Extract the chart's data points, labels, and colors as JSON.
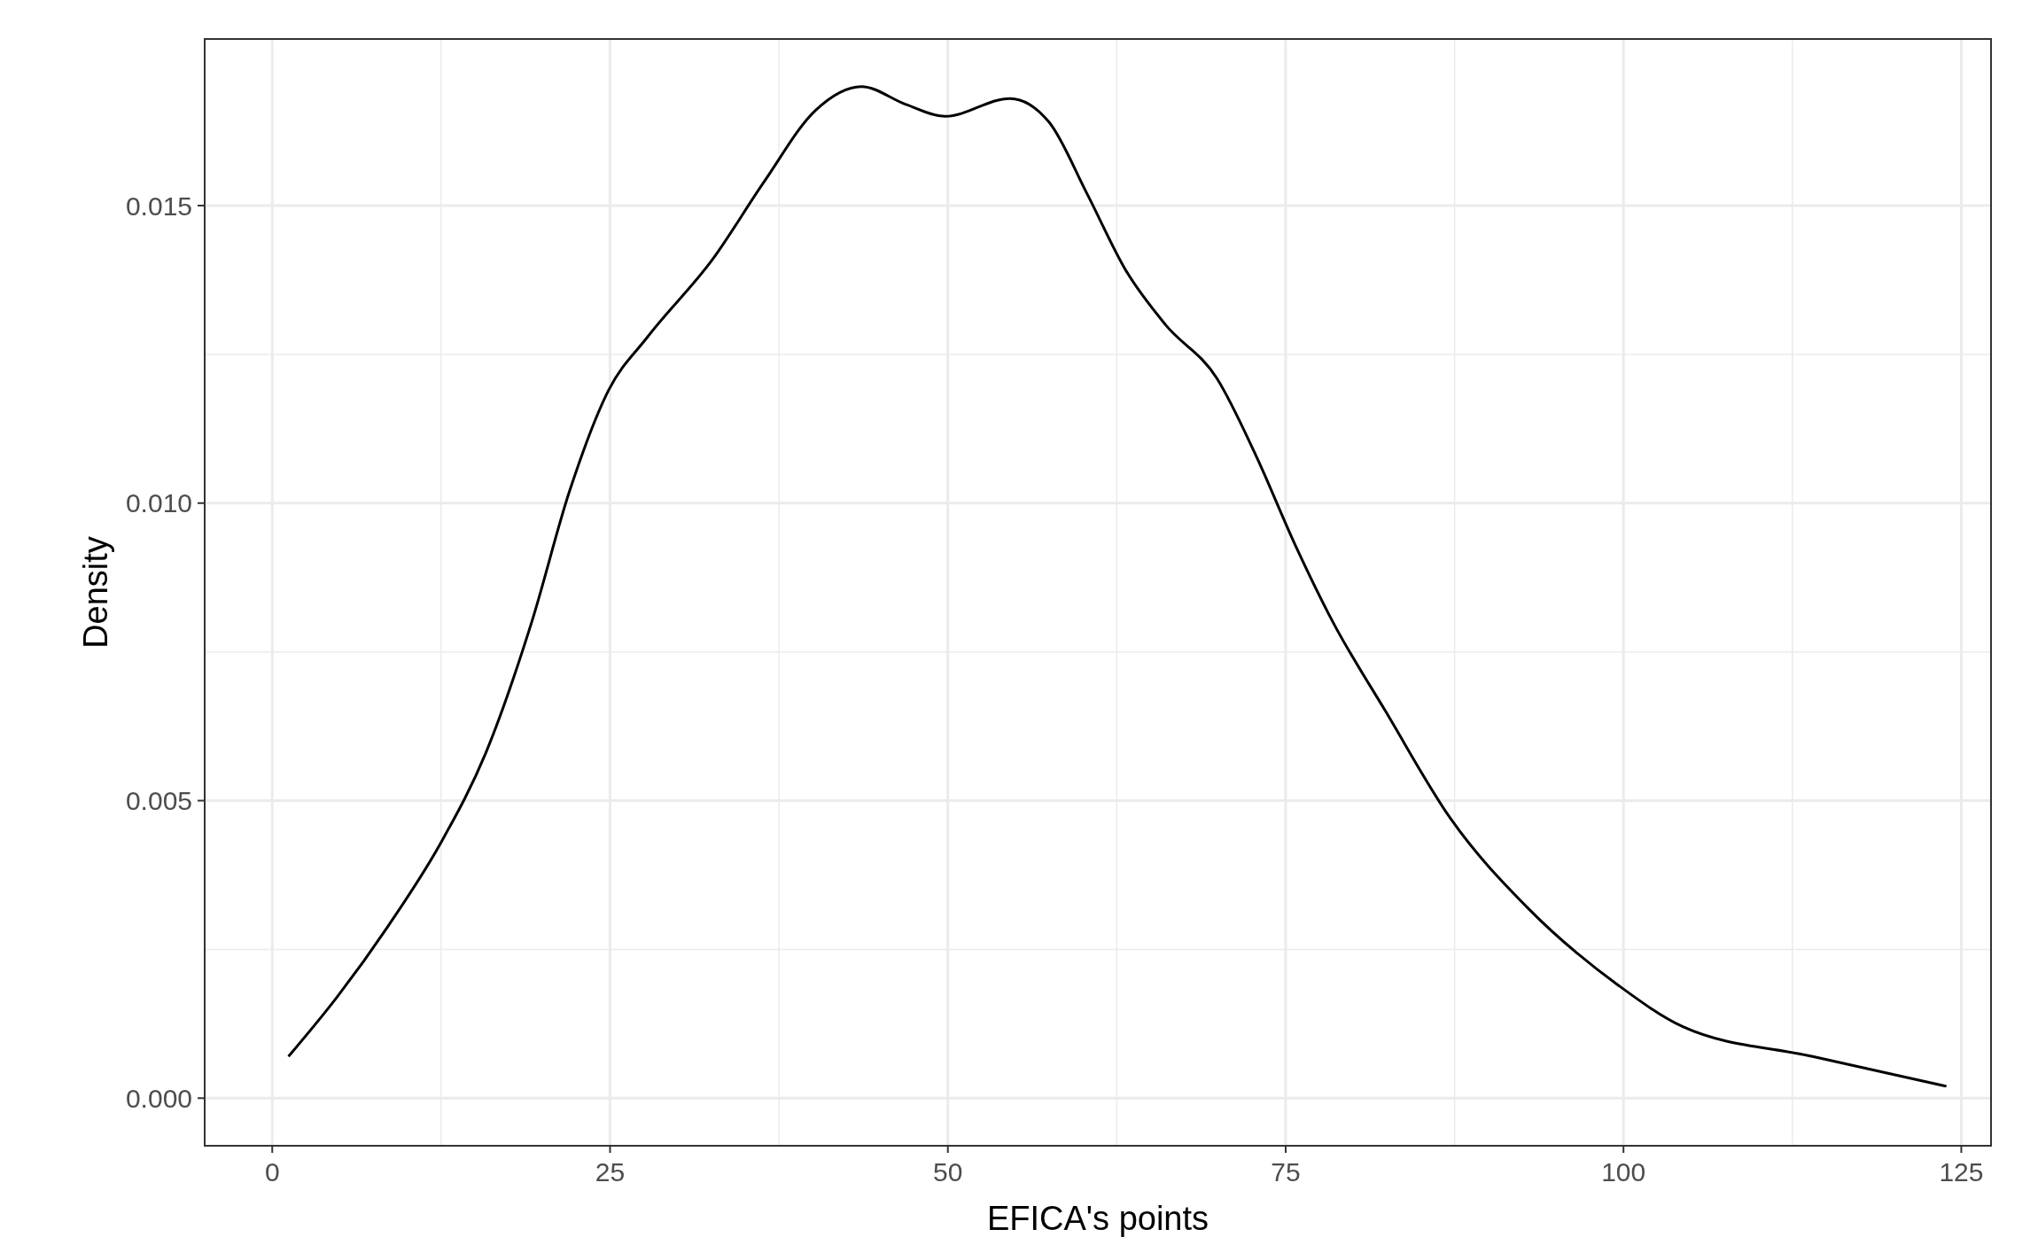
{
  "chart_data": {
    "type": "line",
    "xlabel": "EFICA's points",
    "ylabel": "Density",
    "x": [
      1.2,
      4.8,
      8.6,
      12.5,
      15.8,
      19.2,
      22,
      24.9,
      27.8,
      32.6,
      36.4,
      40.2,
      43.6,
      46.9,
      49.8,
      54.6,
      57.5,
      60.3,
      63.2,
      66.1,
      69.9,
      72.8,
      75.7,
      78.5,
      82.4,
      87.2,
      92.9,
      99.6,
      104.4,
      114,
      123.9
    ],
    "series": [
      {
        "color": "#000000",
        "values": [
          0.0007,
          0.0017,
          0.0029,
          0.0043,
          0.0058,
          0.008,
          0.0102,
          0.0119,
          0.0128,
          0.0141,
          0.0154,
          0.0166,
          0.017,
          0.0167,
          0.0165,
          0.0168,
          0.0164,
          0.0152,
          0.0139,
          0.013,
          0.0121,
          0.0108,
          0.0093,
          0.008,
          0.0065,
          0.0047,
          0.0032,
          0.0019,
          0.0012,
          0.0007,
          0.0002
        ]
      }
    ],
    "xlim": [
      -5,
      127.2
    ],
    "ylim": [
      -0.0008,
      0.0178
    ],
    "xticks": [
      0,
      25,
      50,
      75,
      100,
      125
    ],
    "yticks": [
      {
        "value": 0,
        "label": "0.000"
      },
      {
        "value": 0.005,
        "label": "0.005"
      },
      {
        "value": 0.01,
        "label": "0.010"
      },
      {
        "value": 0.015,
        "label": "0.015"
      }
    ],
    "grid": true,
    "marker": "none",
    "line_style": "solid"
  }
}
